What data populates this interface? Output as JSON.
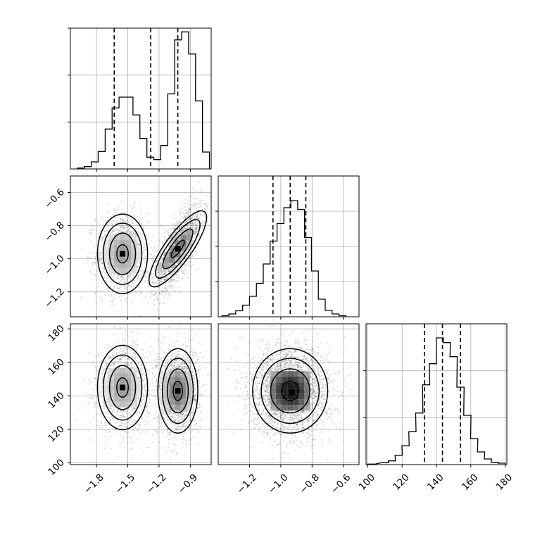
{
  "chart_data": {
    "type": "corner",
    "grid": true,
    "panels": [
      {
        "id": "hist_p1",
        "type": "histogram",
        "xlim": [
          -2.05,
          -0.7
        ],
        "quantile_lines": [
          -1.63,
          -1.28,
          -1.02
        ],
        "bins": [
          {
            "x": -1.95,
            "count": 0.2
          },
          {
            "x": -1.883,
            "count": 0.5
          },
          {
            "x": -1.817,
            "count": 1.5
          },
          {
            "x": -1.75,
            "count": 3.7
          },
          {
            "x": -1.683,
            "count": 8.5
          },
          {
            "x": -1.617,
            "count": 13.0
          },
          {
            "x": -1.55,
            "count": 15.3
          },
          {
            "x": -1.483,
            "count": 15.3
          },
          {
            "x": -1.417,
            "count": 11.5
          },
          {
            "x": -1.35,
            "count": 6.5
          },
          {
            "x": -1.283,
            "count": 2.5
          },
          {
            "x": -1.217,
            "count": 2.0
          },
          {
            "x": -1.15,
            "count": 5.0
          },
          {
            "x": -1.083,
            "count": 16.0
          },
          {
            "x": -1.017,
            "count": 27.5
          },
          {
            "x": -0.95,
            "count": 29.2
          },
          {
            "x": -0.883,
            "count": 24.5
          },
          {
            "x": -0.817,
            "count": 14.5
          },
          {
            "x": -0.75,
            "count": 3.6
          }
        ],
        "ylim": [
          0,
          30
        ]
      },
      {
        "id": "hist_p2",
        "type": "histogram",
        "xlim": [
          -1.4,
          -0.5
        ],
        "quantile_lines": [
          -1.05,
          -0.94,
          -0.84
        ],
        "bins": [
          {
            "x": -1.354,
            "count": 0.3
          },
          {
            "x": -1.31,
            "count": 0.8
          },
          {
            "x": -1.266,
            "count": 1.7
          },
          {
            "x": -1.222,
            "count": 3.3
          },
          {
            "x": -1.178,
            "count": 5.8
          },
          {
            "x": -1.134,
            "count": 9.5
          },
          {
            "x": -1.09,
            "count": 15.0
          },
          {
            "x": -1.046,
            "count": 21.5
          },
          {
            "x": -1.002,
            "count": 26.5
          },
          {
            "x": -0.958,
            "count": 31.0
          },
          {
            "x": -0.914,
            "count": 33.0
          },
          {
            "x": -0.87,
            "count": 30.5
          },
          {
            "x": -0.826,
            "count": 22.5
          },
          {
            "x": -0.782,
            "count": 13.0
          },
          {
            "x": -0.738,
            "count": 5.0
          },
          {
            "x": -0.694,
            "count": 1.8
          },
          {
            "x": -0.65,
            "count": 0.8
          },
          {
            "x": -0.606,
            "count": 0.3
          }
        ],
        "ylim": [
          0,
          40
        ]
      },
      {
        "id": "hist_p3",
        "type": "histogram",
        "xlim": [
          99,
          181
        ],
        "quantile_lines": [
          133,
          143.5,
          154
        ],
        "bins": [
          {
            "x": 102,
            "count": 0.1
          },
          {
            "x": 110,
            "count": 0.4
          },
          {
            "x": 114,
            "count": 0.8
          },
          {
            "x": 118,
            "count": 2.0
          },
          {
            "x": 122,
            "count": 4.0
          },
          {
            "x": 126,
            "count": 7.0
          },
          {
            "x": 130,
            "count": 11.0
          },
          {
            "x": 134,
            "count": 17.0
          },
          {
            "x": 138,
            "count": 21.5
          },
          {
            "x": 142,
            "count": 27.0
          },
          {
            "x": 146,
            "count": 26.0
          },
          {
            "x": 150,
            "count": 23.0
          },
          {
            "x": 154,
            "count": 16.5
          },
          {
            "x": 158,
            "count": 10.5
          },
          {
            "x": 162,
            "count": 5.5
          },
          {
            "x": 166,
            "count": 2.7
          },
          {
            "x": 170,
            "count": 1.2
          },
          {
            "x": 174,
            "count": 0.5
          },
          {
            "x": 178,
            "count": 0.3
          }
        ],
        "ylim": [
          0,
          30
        ]
      },
      {
        "id": "scatter_p1_p2",
        "type": "scatter_contour",
        "xlim": [
          -2.05,
          -0.7
        ],
        "ylim": [
          -1.35,
          -0.5
        ],
        "clusters": [
          {
            "center": [
              -1.55,
              -0.97
            ],
            "std": [
              0.1,
              0.1
            ],
            "corr": 0.0,
            "weight": 0.4
          },
          {
            "center": [
              -1.02,
              -0.94
            ],
            "std": [
              0.09,
              0.1
            ],
            "corr": 0.75,
            "weight": 0.6
          }
        ],
        "density_peaks": [
          {
            "x": -1.55,
            "y": -0.97
          },
          {
            "x": -1.02,
            "y": -0.94
          }
        ]
      },
      {
        "id": "scatter_p1_p3",
        "type": "scatter_contour",
        "xlim": [
          -2.05,
          -0.7
        ],
        "ylim": [
          99,
          183
        ],
        "clusters": [
          {
            "center": [
              -1.55,
              145
            ],
            "std": [
              0.1,
              10.5
            ],
            "corr": 0.0,
            "weight": 0.4
          },
          {
            "center": [
              -1.02,
              143
            ],
            "std": [
              0.08,
              10.5
            ],
            "corr": 0.0,
            "weight": 0.6
          }
        ],
        "density_peaks": [
          {
            "x": -1.55,
            "y": 145
          },
          {
            "x": -1.02,
            "y": 143
          }
        ]
      },
      {
        "id": "scatter_p2_p3",
        "type": "scatter_contour",
        "xlim": [
          -1.4,
          -0.5
        ],
        "ylim": [
          99,
          183
        ],
        "clusters": [
          {
            "center": [
              -0.94,
              143
            ],
            "std": [
              0.1,
              10.5
            ],
            "corr": 0.0,
            "weight": 1.0
          }
        ],
        "density_peaks": [
          {
            "x": -0.93,
            "y": 142
          }
        ]
      }
    ],
    "tick_labels": {
      "p1": [
        "−1.8",
        "−1.5",
        "−1.2",
        "−0.9"
      ],
      "p2": [
        "−1.2",
        "−1.0",
        "−0.8",
        "−0.6"
      ],
      "p3": [
        "100",
        "120",
        "140",
        "160",
        "180"
      ]
    },
    "tick_values": {
      "p1": [
        -1.8,
        -1.5,
        -1.2,
        -0.9
      ],
      "p2": [
        -1.2,
        -1.0,
        -0.8,
        -0.6
      ],
      "p3": [
        100,
        120,
        140,
        160,
        180
      ]
    },
    "y_ticks_left_p2": [
      -1.2,
      -1.0,
      -0.8,
      -0.6
    ],
    "y_ticks_left_p3": [
      100,
      120,
      140,
      160,
      180
    ]
  }
}
